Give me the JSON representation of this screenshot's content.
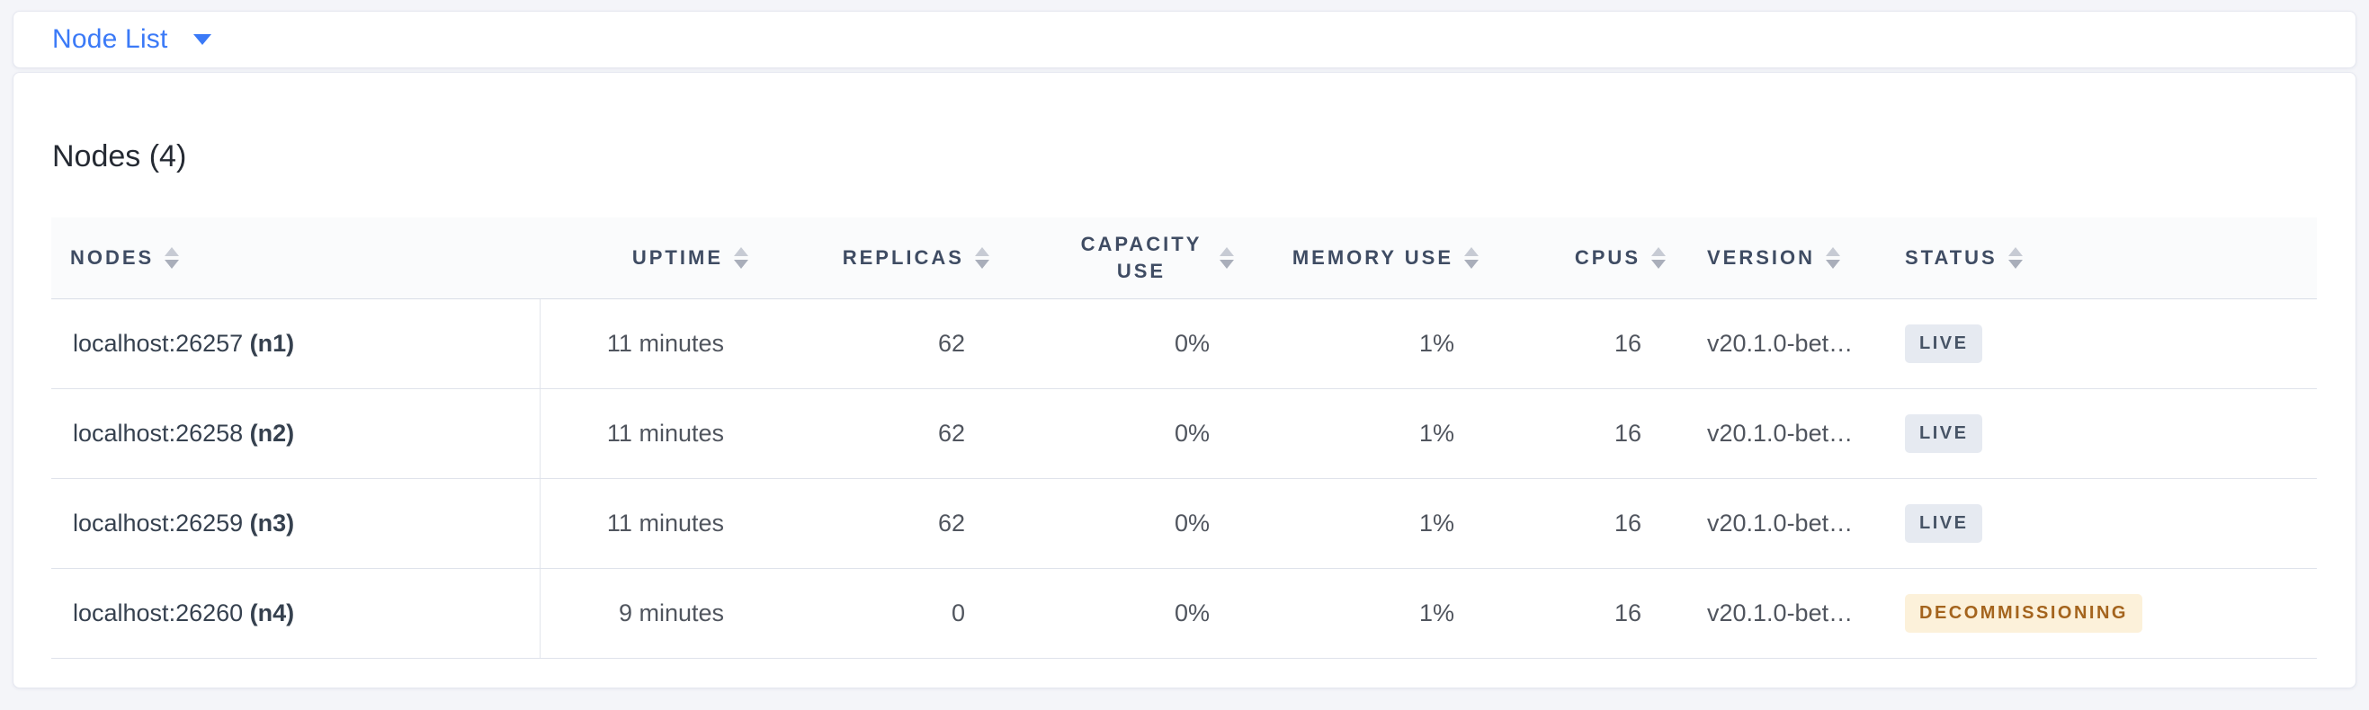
{
  "colors": {
    "accent_blue": "#3b7af7",
    "page_background": "#f4f5f9",
    "header_text": "#3f4c63",
    "live_badge_bg": "#e6eaf1",
    "live_badge_text": "#475466",
    "decommissioning_badge_bg": "#fcf1da",
    "decommissioning_badge_text": "#a4641d"
  },
  "topbar": {
    "dropdown_label": "Node List",
    "dropdown_icon": "caret-down-icon"
  },
  "main": {
    "heading": "Nodes (4)",
    "table": {
      "columns": [
        {
          "key": "nodes",
          "label": "Nodes",
          "sort_icon": "sort-arrows-icon"
        },
        {
          "key": "uptime",
          "label": "Uptime",
          "sort_icon": "sort-arrows-icon"
        },
        {
          "key": "replicas",
          "label": "Replicas",
          "sort_icon": "sort-arrows-icon"
        },
        {
          "key": "capacity_use",
          "label": "Capacity Use",
          "sort_icon": "sort-arrows-icon"
        },
        {
          "key": "memory_use",
          "label": "Memory Use",
          "sort_icon": "sort-arrows-icon"
        },
        {
          "key": "cpus",
          "label": "CPUs",
          "sort_icon": "sort-arrows-icon"
        },
        {
          "key": "version",
          "label": "Version",
          "sort_icon": "sort-arrows-icon"
        },
        {
          "key": "status",
          "label": "Status",
          "sort_icon": "sort-arrows-icon"
        }
      ],
      "rows": [
        {
          "address": "localhost:26257",
          "node_id": "(n1)",
          "uptime": "11 minutes",
          "replicas": "62",
          "capacity_use": "0%",
          "memory_use": "1%",
          "cpus": "16",
          "version": "v20.1.0-bet…",
          "status": "LIVE",
          "status_type": "live"
        },
        {
          "address": "localhost:26258",
          "node_id": "(n2)",
          "uptime": "11 minutes",
          "replicas": "62",
          "capacity_use": "0%",
          "memory_use": "1%",
          "cpus": "16",
          "version": "v20.1.0-bet…",
          "status": "LIVE",
          "status_type": "live"
        },
        {
          "address": "localhost:26259",
          "node_id": "(n3)",
          "uptime": "11 minutes",
          "replicas": "62",
          "capacity_use": "0%",
          "memory_use": "1%",
          "cpus": "16",
          "version": "v20.1.0-bet…",
          "status": "LIVE",
          "status_type": "live"
        },
        {
          "address": "localhost:26260",
          "node_id": "(n4)",
          "uptime": "9 minutes",
          "replicas": "0",
          "capacity_use": "0%",
          "memory_use": "1%",
          "cpus": "16",
          "version": "v20.1.0-bet…",
          "status": "DECOMMISSIONING",
          "status_type": "decommissioning"
        }
      ]
    }
  }
}
